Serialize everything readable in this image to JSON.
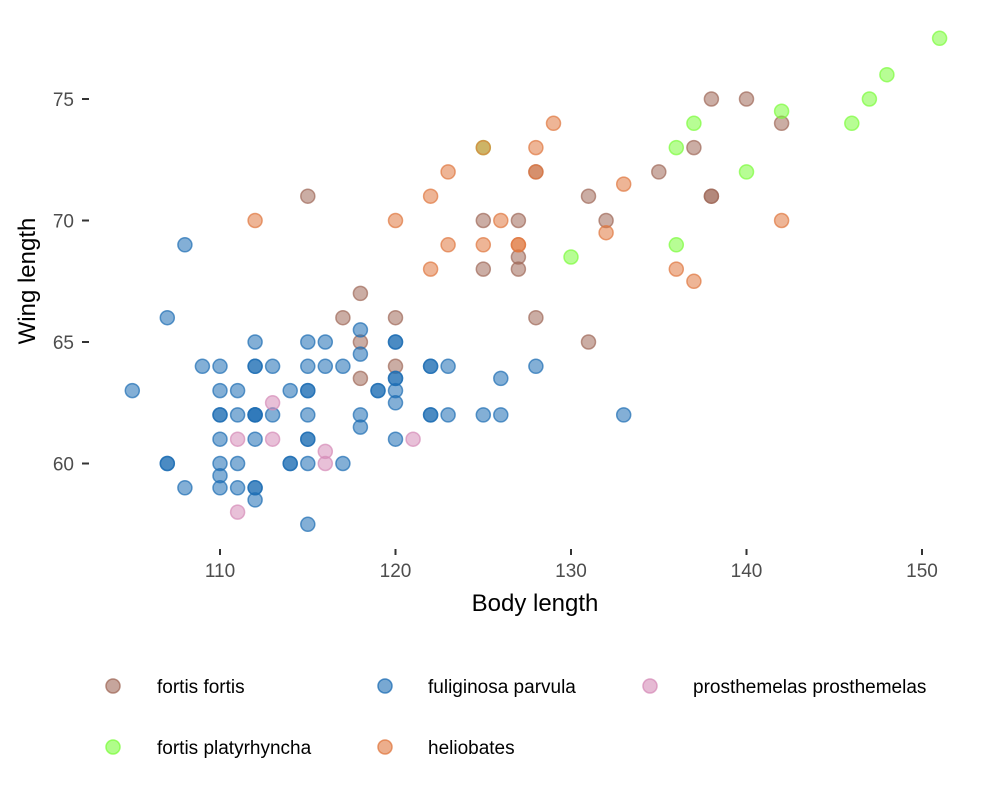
{
  "chart_data": {
    "type": "scatter",
    "title": "",
    "xlabel": "Body length",
    "ylabel": "Wing length",
    "xlim": [
      104,
      152
    ],
    "ylim": [
      56.8,
      78
    ],
    "xticks": [
      110,
      120,
      130,
      140,
      150
    ],
    "yticks": [
      60,
      65,
      70,
      75
    ],
    "grid": false,
    "legend_position": "bottom",
    "series": [
      {
        "name": "fortis fortis",
        "color": "#A0695A",
        "points": [
          [
            115,
            71
          ],
          [
            117,
            66
          ],
          [
            118,
            67
          ],
          [
            118,
            65
          ],
          [
            120,
            66
          ],
          [
            120,
            64
          ],
          [
            125,
            70
          ],
          [
            125,
            68
          ],
          [
            127,
            70
          ],
          [
            127,
            68.5
          ],
          [
            127,
            68
          ],
          [
            128,
            72
          ],
          [
            128,
            66
          ],
          [
            131,
            71
          ],
          [
            131,
            65
          ],
          [
            132,
            70
          ],
          [
            135,
            72
          ],
          [
            137,
            73
          ],
          [
            138,
            75
          ],
          [
            138,
            71
          ],
          [
            138,
            71
          ],
          [
            140,
            75
          ],
          [
            142,
            74
          ],
          [
            118,
            63.5
          ]
        ]
      },
      {
        "name": "fortis platyrhyncha",
        "color": "#7CFC3C",
        "points": [
          [
            125,
            73
          ],
          [
            130,
            68.5
          ],
          [
            136,
            73
          ],
          [
            136,
            69
          ],
          [
            137,
            74
          ],
          [
            140,
            72
          ],
          [
            142,
            74.5
          ],
          [
            146,
            74
          ],
          [
            147,
            75
          ],
          [
            148,
            76
          ],
          [
            151,
            77.5
          ]
        ]
      },
      {
        "name": "fuliginosa parvula",
        "color": "#1E6EB4",
        "points": [
          [
            105,
            63
          ],
          [
            107,
            66
          ],
          [
            107,
            60
          ],
          [
            107,
            60
          ],
          [
            108,
            69
          ],
          [
            108,
            59
          ],
          [
            109,
            64
          ],
          [
            110,
            64
          ],
          [
            110,
            63
          ],
          [
            110,
            62
          ],
          [
            110,
            62
          ],
          [
            110,
            61
          ],
          [
            110,
            60
          ],
          [
            110,
            59.5
          ],
          [
            110,
            59
          ],
          [
            111,
            63
          ],
          [
            111,
            62
          ],
          [
            111,
            60
          ],
          [
            111,
            59
          ],
          [
            112,
            65
          ],
          [
            112,
            64
          ],
          [
            112,
            64
          ],
          [
            112,
            62
          ],
          [
            112,
            62
          ],
          [
            112,
            62
          ],
          [
            112,
            61
          ],
          [
            112,
            59
          ],
          [
            112,
            59
          ],
          [
            112,
            58.5
          ],
          [
            113,
            64
          ],
          [
            113,
            62
          ],
          [
            114,
            63
          ],
          [
            114,
            60
          ],
          [
            114,
            60
          ],
          [
            115,
            65
          ],
          [
            115,
            64
          ],
          [
            115,
            63
          ],
          [
            115,
            63
          ],
          [
            115,
            62
          ],
          [
            115,
            61
          ],
          [
            115,
            61
          ],
          [
            115,
            60
          ],
          [
            115,
            57.5
          ],
          [
            116,
            65
          ],
          [
            116,
            64
          ],
          [
            117,
            64
          ],
          [
            117,
            60
          ],
          [
            118,
            65.5
          ],
          [
            118,
            64.5
          ],
          [
            118,
            62
          ],
          [
            118,
            61.5
          ],
          [
            119,
            63
          ],
          [
            119,
            63
          ],
          [
            120,
            65
          ],
          [
            120,
            65
          ],
          [
            120,
            63.5
          ],
          [
            120,
            63.5
          ],
          [
            120,
            63
          ],
          [
            120,
            62.5
          ],
          [
            120,
            61
          ],
          [
            122,
            64
          ],
          [
            122,
            64
          ],
          [
            122,
            62
          ],
          [
            122,
            62
          ],
          [
            123,
            64
          ],
          [
            123,
            62
          ],
          [
            125,
            62
          ],
          [
            126,
            63.5
          ],
          [
            126,
            62
          ],
          [
            128,
            64
          ],
          [
            133,
            62
          ]
        ]
      },
      {
        "name": "heliobates",
        "color": "#E07840",
        "points": [
          [
            112,
            70
          ],
          [
            120,
            70
          ],
          [
            122,
            71
          ],
          [
            122,
            68
          ],
          [
            123,
            72
          ],
          [
            123,
            69
          ],
          [
            125,
            73
          ],
          [
            125,
            69
          ],
          [
            126,
            70
          ],
          [
            127,
            69
          ],
          [
            127,
            69
          ],
          [
            128,
            73
          ],
          [
            128,
            72
          ],
          [
            129,
            74
          ],
          [
            132,
            69.5
          ],
          [
            133,
            71.5
          ],
          [
            136,
            68
          ],
          [
            137,
            67.5
          ],
          [
            142,
            70
          ]
        ]
      },
      {
        "name": "prosthemelas prosthemelas",
        "color": "#D68CB8",
        "points": [
          [
            111,
            61
          ],
          [
            111,
            58
          ],
          [
            113,
            62.5
          ],
          [
            113,
            61
          ],
          [
            116,
            60.5
          ],
          [
            116,
            60
          ],
          [
            121,
            61
          ]
        ]
      }
    ]
  },
  "legend": {
    "items": [
      {
        "label": "fortis fortis",
        "color": "#A0695A"
      },
      {
        "label": "fuliginosa parvula",
        "color": "#1E6EB4"
      },
      {
        "label": "prosthemelas prosthemelas",
        "color": "#D68CB8"
      },
      {
        "label": "fortis platyrhyncha",
        "color": "#7CFC3C"
      },
      {
        "label": "heliobates",
        "color": "#E07840"
      }
    ]
  }
}
